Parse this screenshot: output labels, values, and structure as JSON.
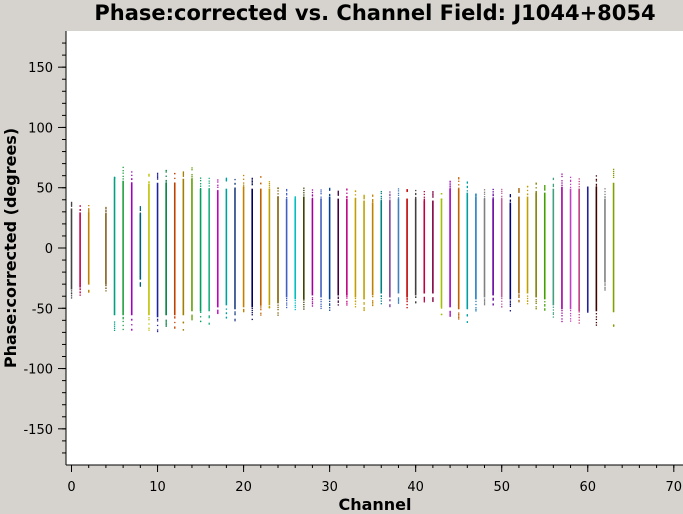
{
  "chart_data": {
    "type": "scatter",
    "title": "Phase:corrected vs. Channel Field: J1044+8054",
    "xlabel": "Channel",
    "ylabel": "Phase:corrected (degrees)",
    "xlim": [
      0,
      70
    ],
    "ylim": [
      -180,
      180
    ],
    "x_ticks": [
      0,
      10,
      20,
      30,
      40,
      50,
      60,
      70
    ],
    "y_ticks": [
      -150,
      -100,
      -50,
      0,
      50,
      100,
      150
    ],
    "grid": false,
    "legend": "none",
    "series": [
      {
        "x": [
          0,
          1,
          2,
          4,
          5,
          6,
          7,
          8,
          9,
          10,
          11,
          12,
          13,
          14,
          15,
          16,
          17,
          18,
          19,
          20,
          21,
          22,
          23,
          24,
          25,
          26,
          27,
          28,
          29,
          30,
          31,
          32,
          33,
          34,
          35,
          36,
          37,
          38,
          39,
          40,
          41,
          42,
          43,
          44,
          45,
          46,
          47,
          48,
          49,
          50,
          51,
          52,
          53,
          54,
          55,
          56,
          57,
          58,
          59,
          60,
          61,
          62,
          63
        ],
        "ymin": [
          -42,
          -40,
          -37,
          -37,
          -68,
          -68,
          -68,
          -32,
          -68,
          -70,
          -68,
          -68,
          -68,
          -64,
          -64,
          -64,
          -60,
          -58,
          -62,
          -60,
          -60,
          -58,
          -58,
          -56,
          -50,
          -52,
          -52,
          -48,
          -50,
          -52,
          -48,
          -48,
          -50,
          -52,
          -48,
          -46,
          -50,
          -46,
          -50,
          -48,
          -46,
          -46,
          -60,
          -60,
          -62,
          -62,
          -52,
          -50,
          -48,
          -50,
          -52,
          -46,
          -46,
          -50,
          -52,
          -58,
          -62,
          -62,
          -64,
          -64,
          -64,
          -35,
          -65
        ],
        "ymax": [
          40,
          36,
          36,
          35,
          70,
          68,
          66,
          35,
          65,
          66,
          66,
          66,
          70,
          70,
          60,
          60,
          58,
          60,
          60,
          62,
          60,
          60,
          60,
          52,
          50,
          50,
          52,
          50,
          50,
          52,
          50,
          50,
          50,
          48,
          46,
          48,
          48,
          50,
          50,
          50,
          48,
          48,
          50,
          60,
          60,
          56,
          52,
          50,
          50,
          50,
          46,
          52,
          52,
          56,
          56,
          60,
          62,
          60,
          60,
          62,
          62,
          50,
          66
        ],
        "colors": [
          "#444444",
          "#c0004a",
          "#c08000",
          "#806020",
          "#00a080",
          "#20a040",
          "#a000c0",
          "#006080",
          "#c0c000",
          "#2020a0",
          "#008040",
          "#c04000",
          "#a08000",
          "#60a000",
          "#00a060",
          "#20b080",
          "#c000c0",
          "#00a0a0",
          "#204080",
          "#c08000",
          "#000060",
          "#c06000",
          "#c0a000",
          "#806000",
          "#4060c0",
          "#00c0c0",
          "#404000",
          "#a000a0",
          "#4060c0",
          "#0040a0",
          "#400040",
          "#c00080",
          "#c0a000",
          "#c0a000",
          "#c08000",
          "#008080",
          "#8040a0",
          "#4080c0",
          "#c00000",
          "#404040",
          "#c00040",
          "#800040",
          "#a0c000",
          "#a000c0",
          "#c06000",
          "#00a0a0",
          "#2080c0",
          "#808080",
          "#6000a0",
          "#c060a0",
          "#000080",
          "#a06000",
          "#c0a000",
          "#808000",
          "#40a000",
          "#40a080",
          "#a000a0",
          "#c040c0",
          "#c04080",
          "#2020a0",
          "#400000",
          "#808080",
          "#80a000"
        ]
      }
    ]
  }
}
